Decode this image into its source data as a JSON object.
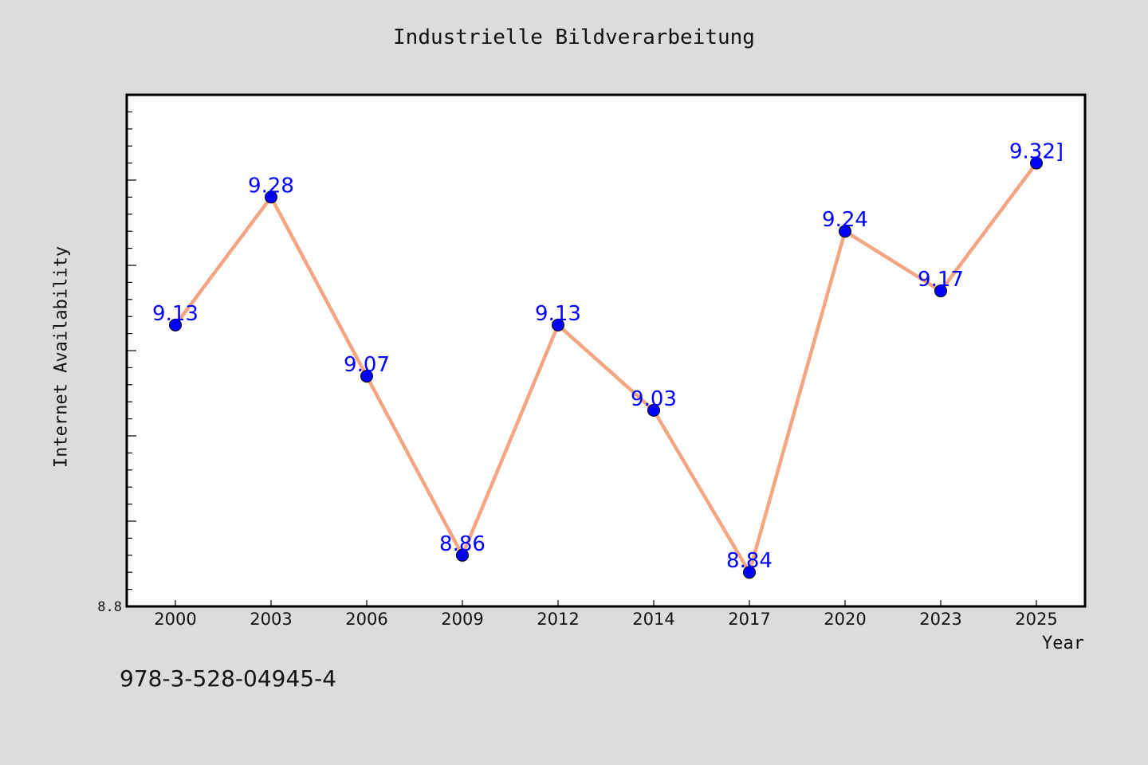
{
  "chart_data": {
    "type": "line",
    "title": "Industrielle Bildverarbeitung",
    "xlabel": "Year",
    "ylabel": "Internet Availability",
    "categories": [
      "2000",
      "2003",
      "2006",
      "2009",
      "2012",
      "2014",
      "2017",
      "2020",
      "2023",
      "2025"
    ],
    "series": [
      {
        "values": [
          9.13,
          9.28,
          9.07,
          8.86,
          9.13,
          9.03,
          8.84,
          9.24,
          9.17,
          9.32
        ]
      }
    ],
    "data_labels": [
      "9.13",
      "9.28",
      "9.07",
      "8.86",
      "9.13",
      "9.03",
      "8.84",
      "9.24",
      "9.17",
      "9.32]"
    ],
    "ylim": [
      8.8,
      9.4
    ],
    "ytick_labels": [
      "8.8"
    ],
    "grid": false,
    "colors": {
      "line": "#f4a582",
      "marker": "#0000ff",
      "label": "#0000ff",
      "background": "#dcdcdc",
      "plot_background": "#ffffff"
    }
  },
  "footer": {
    "isbn": "978-3-528-04945-4"
  }
}
